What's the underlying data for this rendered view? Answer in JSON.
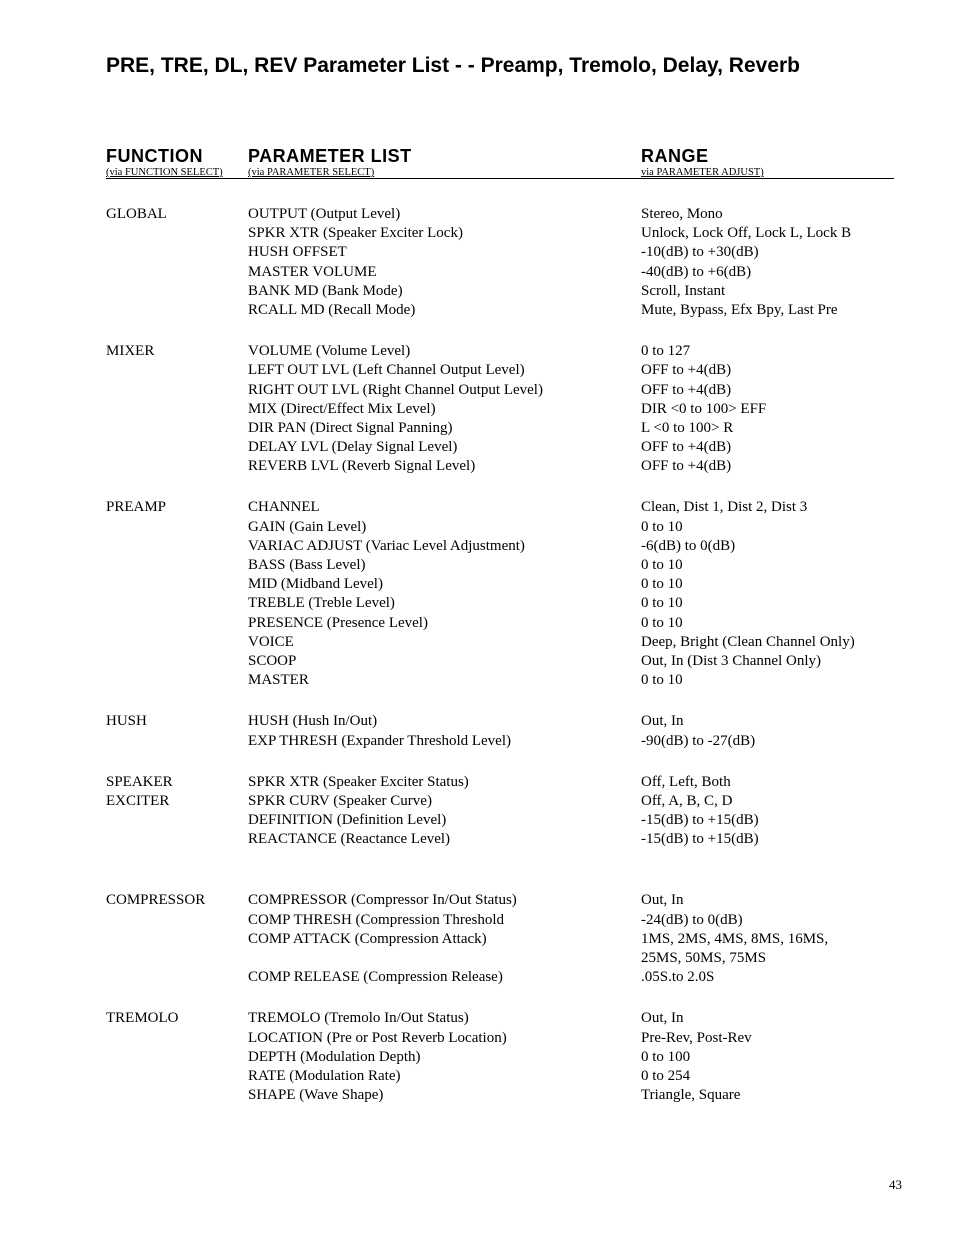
{
  "title": "PRE, TRE, DL, REV Parameter List - - Preamp, Tremolo, Delay, Reverb",
  "headers": {
    "function": {
      "top": "FUNCTION",
      "sub": "(via FUNCTION SELECT)"
    },
    "parameter": {
      "top": "PARAMETER LIST",
      "sub": "(via PARAMETER SELECT)"
    },
    "range": {
      "top": "RANGE",
      "sub": "via PARAMETER ADJUST)"
    }
  },
  "page_number": "43",
  "sections": [
    {
      "function": "GLOBAL",
      "rows": [
        {
          "param": "OUTPUT (Output Level)",
          "range": "Stereo, Mono"
        },
        {
          "param": "SPKR XTR (Speaker Exciter Lock)",
          "range": "Unlock, Lock Off, Lock L, Lock B"
        },
        {
          "param": "HUSH OFFSET",
          "range": "-10(dB) to +30(dB)"
        },
        {
          "param": "MASTER VOLUME",
          "range": "-40(dB) to +6(dB)"
        },
        {
          "param": "BANK MD (Bank Mode)",
          "range": "Scroll, Instant"
        },
        {
          "param": "RCALL MD (Recall Mode)",
          "range": "Mute, Bypass, Efx Bpy, Last Pre"
        }
      ]
    },
    {
      "function": "MIXER",
      "rows": [
        {
          "param": "VOLUME (Volume Level)",
          "range": "0 to 127"
        },
        {
          "param": "LEFT OUT LVL (Left Channel Output Level)",
          "range": "OFF  to +4(dB)"
        },
        {
          "param": "RIGHT OUT LVL (Right Channel Output Level)",
          "range": "OFF  to +4(dB)"
        },
        {
          "param": "MIX (Direct/Effect Mix Level)",
          "range": "DIR <0 to 100> EFF"
        },
        {
          "param": "DIR PAN (Direct Signal Panning)",
          "range": "L <0 to 100> R"
        },
        {
          "param": "DELAY LVL (Delay Signal Level)",
          "range": "OFF to +4(dB)"
        },
        {
          "param": "REVERB LVL (Reverb Signal Level)",
          "range": "OFF to +4(dB)"
        }
      ]
    },
    {
      "function": "PREAMP",
      "rows": [
        {
          "param": "CHANNEL",
          "range": "Clean, Dist 1, Dist 2, Dist 3"
        },
        {
          "param": "GAIN (Gain Level)",
          "range": "0 to 10"
        },
        {
          "param": "VARIAC ADJUST (Variac Level Adjustment)",
          "range": "-6(dB) to 0(dB)"
        },
        {
          "param": "BASS (Bass Level)",
          "range": "0 to 10"
        },
        {
          "param": "MID (Midband Level)",
          "range": "0 to 10"
        },
        {
          "param": "TREBLE (Treble Level)",
          "range": "0 to 10"
        },
        {
          "param": "PRESENCE (Presence Level)",
          "range": "0 to 10"
        },
        {
          "param": "VOICE",
          "range": "Deep, Bright (Clean Channel Only)"
        },
        {
          "param": "SCOOP",
          "range": "Out, In (Dist 3 Channel Only)"
        },
        {
          "param": "MASTER",
          "range": "0 to 10"
        }
      ]
    },
    {
      "function": "HUSH",
      "rows": [
        {
          "param": "HUSH (Hush In/Out)",
          "range": "Out, In"
        },
        {
          "param": "EXP THRESH (Expander Threshold Level)",
          "range": "-90(dB) to -27(dB)"
        }
      ]
    },
    {
      "function": "SPEAKER\nEXCITER",
      "rows": [
        {
          "param": "SPKR XTR (Speaker Exciter Status)",
          "range": "Off, Left, Both"
        },
        {
          "param": "SPKR CURV (Speaker Curve)",
          "range": "Off, A, B, C, D"
        },
        {
          "param": "DEFINITION (Definition Level)",
          "range": "-15(dB) to +15(dB)"
        },
        {
          "param": "REACTANCE (Reactance Level)",
          "range": "-15(dB) to +15(dB)"
        }
      ],
      "extra_gap_after": true
    },
    {
      "function": "COMPRESSOR",
      "rows": [
        {
          "param": "COMPRESSOR (Compressor In/Out Status)",
          "range": "Out, In"
        },
        {
          "param": "COMP THRESH (Compression Threshold",
          "range": "-24(dB) to 0(dB)"
        },
        {
          "param": "COMP ATTACK (Compression Attack)",
          "range": "1MS, 2MS, 4MS, 8MS, 16MS,"
        },
        {
          "param": "",
          "range": "25MS, 50MS, 75MS"
        },
        {
          "param": "COMP RELEASE (Compression Release)",
          "range": ".05S.to 2.0S"
        }
      ]
    },
    {
      "function": "TREMOLO",
      "rows": [
        {
          "param": "TREMOLO (Tremolo In/Out Status)",
          "range": "Out, In"
        },
        {
          "param": "LOCATION (Pre or Post Reverb Location)",
          "range": "Pre-Rev, Post-Rev"
        },
        {
          "param": "DEPTH (Modulation Depth)",
          "range": "0 to 100"
        },
        {
          "param": "RATE (Modulation Rate)",
          "range": "0 to 254"
        },
        {
          "param": "SHAPE (Wave Shape)",
          "range": "Triangle, Square"
        }
      ]
    }
  ]
}
